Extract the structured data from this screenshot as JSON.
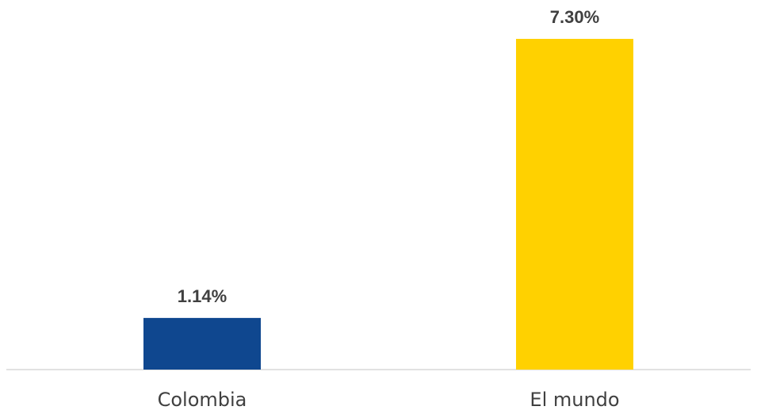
{
  "chart_data": {
    "type": "bar",
    "categories": [
      "Colombia",
      "El mundo"
    ],
    "values": [
      1.14,
      7.3
    ],
    "data_labels": [
      "1.14%",
      "7.30%"
    ],
    "colors": [
      "#0F478F",
      "#FFD100"
    ],
    "ylim": [
      0,
      7.3
    ],
    "title": "",
    "xlabel": "",
    "ylabel": "",
    "grid": false,
    "legend": "none"
  }
}
